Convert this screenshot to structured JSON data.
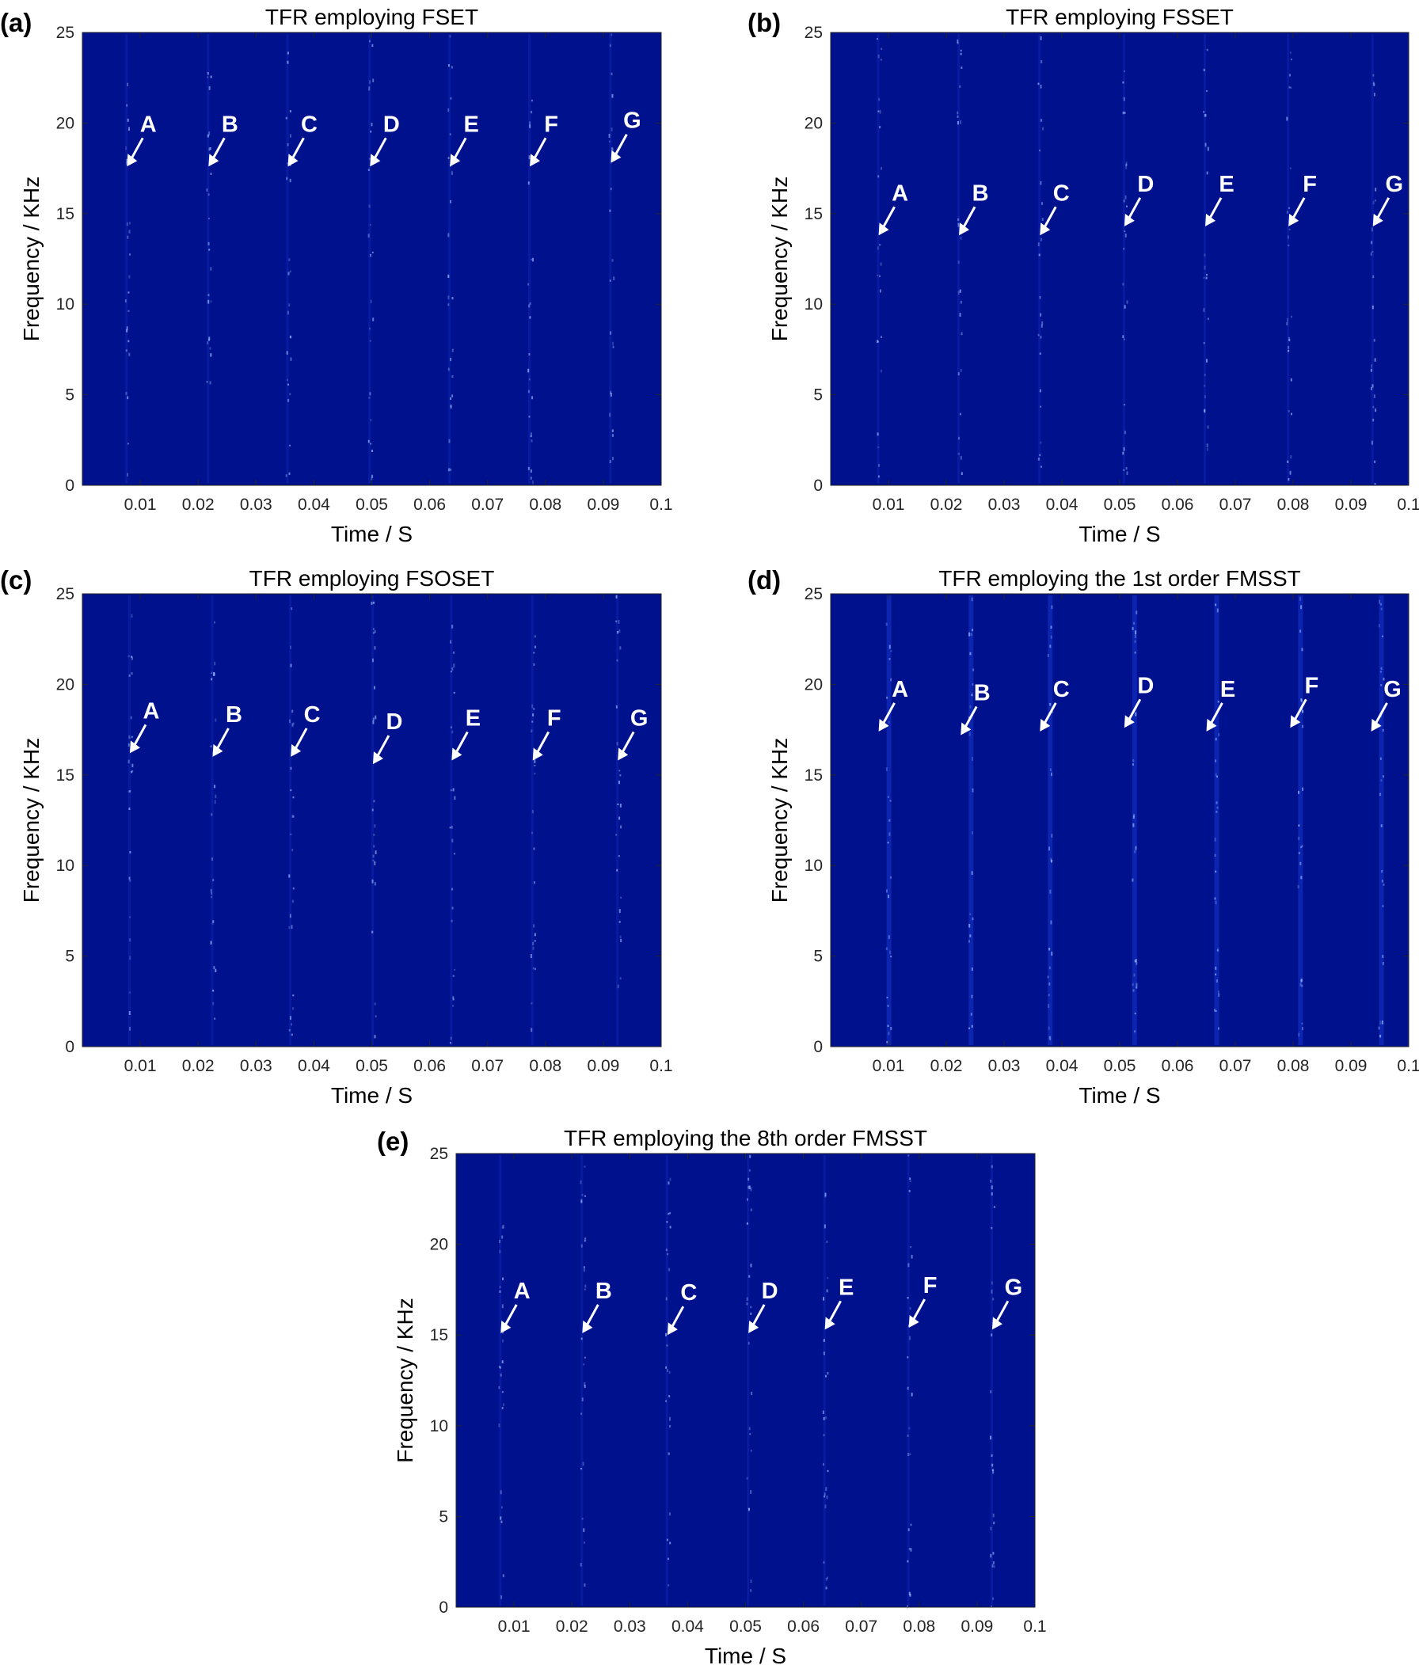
{
  "colors": {
    "plot_background": "#00118e",
    "ridge_color": "#1b3bd6",
    "speck_color": "#9fc4ff",
    "marker_color": "#ffffff",
    "axis_color": "#262626"
  },
  "chart_data": [
    {
      "type": "heatmap",
      "panel_label": "(a)",
      "title": "TFR employing FSET",
      "xlabel": "Time / S",
      "ylabel": "Frequency / KHz",
      "xlim": [
        0,
        0.1
      ],
      "ylim": [
        0,
        25
      ],
      "xticks": [
        "0.01",
        "0.02",
        "0.03",
        "0.04",
        "0.05",
        "0.06",
        "0.07",
        "0.08",
        "0.09",
        "0.1"
      ],
      "yticks": [
        "0",
        "5",
        "10",
        "15",
        "20",
        "25"
      ],
      "grid": false,
      "markers": [
        {
          "label": "A",
          "x": 0.0077,
          "y": 17.6
        },
        {
          "label": "B",
          "x": 0.0218,
          "y": 17.6
        },
        {
          "label": "C",
          "x": 0.0355,
          "y": 17.6
        },
        {
          "label": "D",
          "x": 0.0497,
          "y": 17.6
        },
        {
          "label": "E",
          "x": 0.0635,
          "y": 17.6
        },
        {
          "label": "F",
          "x": 0.0773,
          "y": 17.6
        },
        {
          "label": "G",
          "x": 0.0913,
          "y": 17.8
        }
      ]
    },
    {
      "type": "heatmap",
      "panel_label": "(b)",
      "title": "TFR employing FSSET",
      "xlabel": "Time / S",
      "ylabel": "Frequency / KHz",
      "xlim": [
        0,
        0.1
      ],
      "ylim": [
        0,
        25
      ],
      "xticks": [
        "0.01",
        "0.02",
        "0.03",
        "0.04",
        "0.05",
        "0.06",
        "0.07",
        "0.08",
        "0.09",
        "0.1"
      ],
      "yticks": [
        "0",
        "5",
        "10",
        "15",
        "20",
        "25"
      ],
      "grid": false,
      "markers": [
        {
          "label": "A",
          "x": 0.0083,
          "y": 13.8
        },
        {
          "label": "B",
          "x": 0.0222,
          "y": 13.8
        },
        {
          "label": "C",
          "x": 0.0362,
          "y": 13.8
        },
        {
          "label": "D",
          "x": 0.0508,
          "y": 14.3
        },
        {
          "label": "E",
          "x": 0.0648,
          "y": 14.3
        },
        {
          "label": "F",
          "x": 0.0792,
          "y": 14.3
        },
        {
          "label": "G",
          "x": 0.0938,
          "y": 14.3
        }
      ]
    },
    {
      "type": "heatmap",
      "panel_label": "(c)",
      "title": "TFR employing FSOSET",
      "xlabel": "Time / S",
      "ylabel": "Frequency / KHz",
      "xlim": [
        0,
        0.1
      ],
      "ylim": [
        0,
        25
      ],
      "xticks": [
        "0.01",
        "0.02",
        "0.03",
        "0.04",
        "0.05",
        "0.06",
        "0.07",
        "0.08",
        "0.09",
        "0.1"
      ],
      "yticks": [
        "0",
        "5",
        "10",
        "15",
        "20",
        "25"
      ],
      "grid": false,
      "markers": [
        {
          "label": "A",
          "x": 0.0082,
          "y": 16.2
        },
        {
          "label": "B",
          "x": 0.0225,
          "y": 16.0
        },
        {
          "label": "C",
          "x": 0.036,
          "y": 16.0
        },
        {
          "label": "D",
          "x": 0.0502,
          "y": 15.6
        },
        {
          "label": "E",
          "x": 0.0638,
          "y": 15.8
        },
        {
          "label": "F",
          "x": 0.0778,
          "y": 15.8
        },
        {
          "label": "G",
          "x": 0.0925,
          "y": 15.8
        }
      ]
    },
    {
      "type": "heatmap",
      "panel_label": "(d)",
      "title": "TFR employing the 1st order FMSST",
      "xlabel": "Time / S",
      "ylabel": "Frequency / KHz",
      "xlim": [
        0,
        0.1
      ],
      "ylim": [
        0,
        25
      ],
      "xticks": [
        "0.01",
        "0.02",
        "0.03",
        "0.04",
        "0.05",
        "0.06",
        "0.07",
        "0.08",
        "0.09",
        "0.1"
      ],
      "yticks": [
        "0",
        "5",
        "10",
        "15",
        "20",
        "25"
      ],
      "grid": false,
      "markers": [
        {
          "label": "A",
          "x": 0.0083,
          "y": 17.4
        },
        {
          "label": "B",
          "x": 0.0225,
          "y": 17.2
        },
        {
          "label": "C",
          "x": 0.0362,
          "y": 17.4
        },
        {
          "label": "D",
          "x": 0.0508,
          "y": 17.6
        },
        {
          "label": "E",
          "x": 0.065,
          "y": 17.4
        },
        {
          "label": "F",
          "x": 0.0795,
          "y": 17.6
        },
        {
          "label": "G",
          "x": 0.0935,
          "y": 17.4
        }
      ]
    },
    {
      "type": "heatmap",
      "panel_label": "(e)",
      "title": "TFR employing the 8th order FMSST",
      "xlabel": "Time / S",
      "ylabel": "Frequency / KHz",
      "xlim": [
        0,
        0.1
      ],
      "ylim": [
        0,
        25
      ],
      "xticks": [
        "0.01",
        "0.02",
        "0.03",
        "0.04",
        "0.05",
        "0.06",
        "0.07",
        "0.08",
        "0.09",
        "0.1"
      ],
      "yticks": [
        "0",
        "5",
        "10",
        "15",
        "20",
        "25"
      ],
      "grid": false,
      "markers": [
        {
          "label": "A",
          "x": 0.0077,
          "y": 15.1
        },
        {
          "label": "B",
          "x": 0.0218,
          "y": 15.1
        },
        {
          "label": "C",
          "x": 0.0365,
          "y": 15.0
        },
        {
          "label": "D",
          "x": 0.0505,
          "y": 15.1
        },
        {
          "label": "E",
          "x": 0.0637,
          "y": 15.3
        },
        {
          "label": "F",
          "x": 0.0782,
          "y": 15.4
        },
        {
          "label": "G",
          "x": 0.0926,
          "y": 15.3
        }
      ]
    }
  ]
}
